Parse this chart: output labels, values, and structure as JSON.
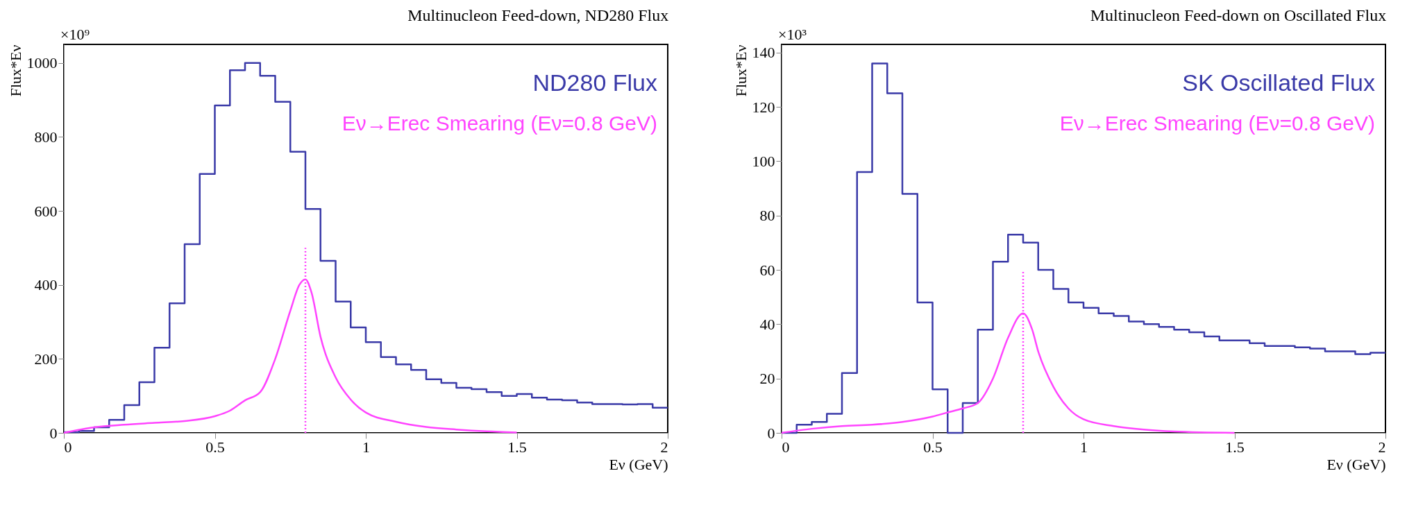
{
  "chart_data": [
    {
      "type": "histogram",
      "title": "Multinucleon Feed-down, ND280 Flux",
      "xlabel": "Eν (GeV)",
      "ylabel": "Flux*Eν",
      "annotations": [
        "×10⁹"
      ],
      "xlim": [
        0,
        2
      ],
      "xticks": [
        0,
        0.5,
        1,
        1.5,
        2
      ],
      "ylim": [
        0,
        1050
      ],
      "yticks": [
        0,
        200,
        400,
        600,
        800,
        1000
      ],
      "series": [
        {
          "type": "histogram",
          "name": "ND280 Flux",
          "color": "#3a3aa8",
          "bins": [
            0,
            0.05,
            0.1,
            0.15,
            0.2,
            0.25,
            0.3,
            0.35,
            0.4,
            0.45,
            0.5,
            0.55,
            0.6,
            0.65,
            0.7,
            0.75,
            0.8,
            0.85,
            0.9,
            0.95,
            1.0,
            1.05,
            1.1,
            1.15,
            1.2,
            1.25,
            1.3,
            1.35,
            1.4,
            1.45,
            1.5,
            1.55,
            1.6,
            1.65,
            1.7,
            1.75,
            1.8,
            1.85,
            1.9,
            1.95,
            2.0
          ],
          "values": [
            2,
            5,
            15,
            35,
            75,
            137,
            230,
            350,
            510,
            700,
            885,
            980,
            1000,
            965,
            895,
            760,
            605,
            465,
            355,
            285,
            245,
            205,
            185,
            170,
            145,
            135,
            122,
            118,
            110,
            100,
            105,
            95,
            90,
            88,
            82,
            78,
            78,
            77,
            78,
            68
          ]
        },
        {
          "type": "line",
          "name": "Eν→Erec Smearing (Eν=0.8 GeV)",
          "color": "#ff44ff",
          "x": [
            0,
            0.1,
            0.2,
            0.3,
            0.4,
            0.5,
            0.55,
            0.6,
            0.65,
            0.7,
            0.75,
            0.78,
            0.8,
            0.82,
            0.85,
            0.9,
            0.95,
            1.0,
            1.1,
            1.2,
            1.3,
            1.4,
            1.5
          ],
          "values": [
            0,
            15,
            22,
            27,
            32,
            45,
            60,
            88,
            110,
            200,
            330,
            400,
            415,
            380,
            260,
            150,
            90,
            55,
            30,
            16,
            9,
            4,
            1
          ]
        },
        {
          "type": "line",
          "line_style": "dotted",
          "color": "#ff44ff",
          "x": [
            0.8,
            0.8
          ],
          "values": [
            0,
            500
          ]
        }
      ]
    },
    {
      "type": "histogram",
      "title": "Multinucleon Feed-down on Oscillated Flux",
      "xlabel": "Eν (GeV)",
      "ylabel": "Flux*Eν",
      "annotations": [
        "×10³"
      ],
      "xlim": [
        0,
        2
      ],
      "xticks": [
        0,
        0.5,
        1,
        1.5,
        2
      ],
      "ylim": [
        0,
        143
      ],
      "yticks": [
        0,
        20,
        40,
        60,
        80,
        100,
        120,
        140
      ],
      "series": [
        {
          "type": "histogram",
          "name": "SK Oscillated Flux",
          "color": "#3a3aa8",
          "bins": [
            0,
            0.05,
            0.1,
            0.15,
            0.2,
            0.25,
            0.3,
            0.35,
            0.4,
            0.45,
            0.5,
            0.55,
            0.6,
            0.65,
            0.7,
            0.75,
            0.8,
            0.85,
            0.9,
            0.95,
            1.0,
            1.05,
            1.1,
            1.15,
            1.2,
            1.25,
            1.3,
            1.35,
            1.4,
            1.45,
            1.5,
            1.55,
            1.6,
            1.65,
            1.7,
            1.75,
            1.8,
            1.85,
            1.9,
            1.95,
            2.0
          ],
          "values": [
            0,
            3,
            4,
            7,
            22,
            96,
            136,
            125,
            88,
            48,
            16,
            0,
            11,
            38,
            63,
            73,
            70,
            60,
            53,
            48,
            46,
            44,
            43,
            41,
            40,
            39,
            38,
            37,
            35.5,
            34,
            34,
            33,
            32,
            32,
            31.5,
            31,
            30,
            30,
            29,
            29.5
          ]
        },
        {
          "type": "line",
          "name": "Eν→Erec Smearing (Eν=0.8 GeV)",
          "color": "#ff44ff",
          "x": [
            0,
            0.1,
            0.2,
            0.3,
            0.4,
            0.5,
            0.55,
            0.6,
            0.65,
            0.7,
            0.75,
            0.8,
            0.83,
            0.85,
            0.9,
            0.95,
            1.0,
            1.1,
            1.2,
            1.3,
            1.5
          ],
          "values": [
            0,
            1.5,
            2.5,
            3,
            4,
            6,
            7.5,
            9,
            11,
            20,
            35,
            44,
            38,
            30,
            17,
            9,
            5,
            2.5,
            1.2,
            0.5,
            0
          ]
        },
        {
          "type": "line",
          "line_style": "dotted",
          "color": "#ff44ff",
          "x": [
            0.8,
            0.8
          ],
          "values": [
            0,
            60
          ]
        }
      ]
    }
  ]
}
